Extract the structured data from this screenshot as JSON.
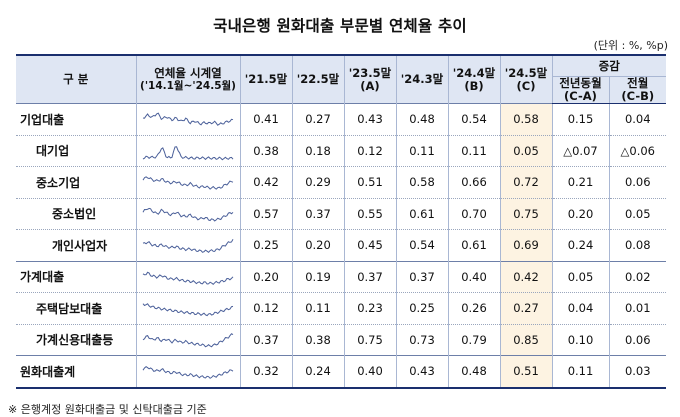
{
  "title": "국내은행 원화대출 부문별 연체율 추이",
  "unit": "(단위 : %, %p)",
  "header": {
    "category": "구   분",
    "sparkline_line1": "연체율 시계열",
    "sparkline_line2": "('14.1월~'24.5월)",
    "c1": "'21.5말",
    "c2": "'22.5말",
    "c3_line1": "'23.5말",
    "c3_line2": "(A)",
    "c4": "'24.3말",
    "c5_line1": "'24.4말",
    "c5_line2": "(B)",
    "c6_line1": "'24.5말",
    "c6_line2": "(C)",
    "change": "증감",
    "yoy_line1": "전년동월",
    "yoy_line2": "(C-A)",
    "mom_line1": "전월",
    "mom_line2": "(C-B)"
  },
  "rows": [
    {
      "name": "기업대출",
      "level": 1,
      "v1": "0.41",
      "v2": "0.27",
      "v3": "0.43",
      "v4": "0.48",
      "v5": "0.54",
      "v6": "0.58",
      "yoy": "0.15",
      "mom": "0.04"
    },
    {
      "name": "대기업",
      "level": 2,
      "v1": "0.38",
      "v2": "0.18",
      "v3": "0.12",
      "v4": "0.11",
      "v5": "0.11",
      "v6": "0.05",
      "yoy": "△0.07",
      "mom": "△0.06"
    },
    {
      "name": "중소기업",
      "level": 2,
      "v1": "0.42",
      "v2": "0.29",
      "v3": "0.51",
      "v4": "0.58",
      "v5": "0.66",
      "v6": "0.72",
      "yoy": "0.21",
      "mom": "0.06"
    },
    {
      "name": "중소법인",
      "level": 3,
      "v1": "0.57",
      "v2": "0.37",
      "v3": "0.55",
      "v4": "0.61",
      "v5": "0.70",
      "v6": "0.75",
      "yoy": "0.20",
      "mom": "0.05"
    },
    {
      "name": "개인사업자",
      "level": 3,
      "v1": "0.25",
      "v2": "0.20",
      "v3": "0.45",
      "v4": "0.54",
      "v5": "0.61",
      "v6": "0.69",
      "yoy": "0.24",
      "mom": "0.08"
    },
    {
      "name": "가계대출",
      "level": 1,
      "v1": "0.20",
      "v2": "0.19",
      "v3": "0.37",
      "v4": "0.37",
      "v5": "0.40",
      "v6": "0.42",
      "yoy": "0.05",
      "mom": "0.02"
    },
    {
      "name": "주택담보대출",
      "level": 2,
      "v1": "0.12",
      "v2": "0.11",
      "v3": "0.23",
      "v4": "0.25",
      "v5": "0.26",
      "v6": "0.27",
      "yoy": "0.04",
      "mom": "0.01"
    },
    {
      "name": "가계신용대출등",
      "level": 2,
      "v1": "0.37",
      "v2": "0.38",
      "v3": "0.75",
      "v4": "0.73",
      "v5": "0.79",
      "v6": "0.85",
      "yoy": "0.10",
      "mom": "0.06"
    },
    {
      "name": "원화대출계",
      "level": 1,
      "v1": "0.32",
      "v2": "0.24",
      "v3": "0.40",
      "v4": "0.43",
      "v5": "0.48",
      "v6": "0.51",
      "yoy": "0.11",
      "mom": "0.03"
    }
  ],
  "footnote": "※ 은행계정 원화대출금 및 신탁대출금 기준",
  "colors": {
    "header_bg": "#dfe6f3",
    "highlight_col": "#fdf3e2",
    "rule": "#1a2f6e",
    "sparkline": "#4a5f99"
  }
}
